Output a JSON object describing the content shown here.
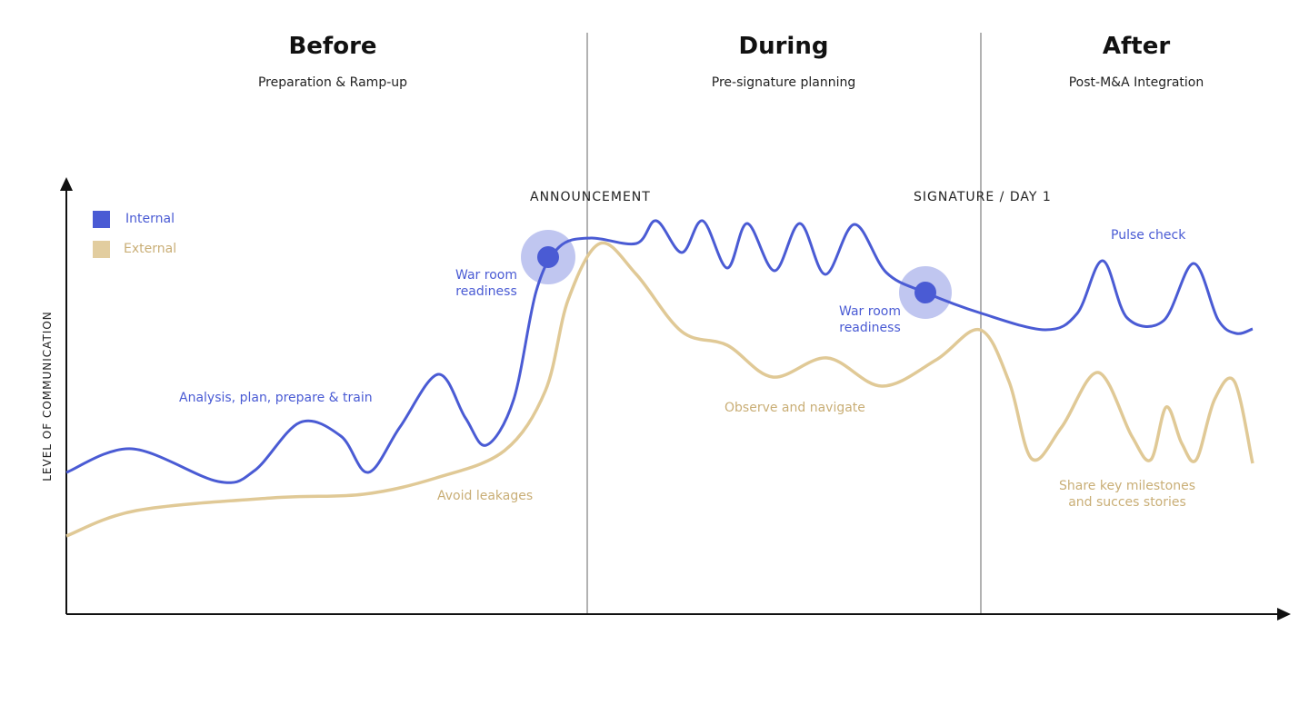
{
  "phases": [
    {
      "title": "Before",
      "subtitle": "Preparation & Ramp-up"
    },
    {
      "title": "During",
      "subtitle": "Pre-signature planning"
    },
    {
      "title": "After",
      "subtitle": "Post-M&A Integration"
    }
  ],
  "milestones": [
    "ANNOUNCEMENT",
    "SIGNATURE / DAY 1"
  ],
  "axis_label": "LEVEL OF COMMUNICATION",
  "legend": [
    "Internal",
    "External"
  ],
  "internal_labels": [
    "Analysis, plan, prepare & train",
    "War room readiness",
    "War room readiness",
    "Pulse check"
  ],
  "external_labels": [
    "Avoid leakages",
    "Observe and navigate",
    "Share key milestones and succes stories"
  ]
}
